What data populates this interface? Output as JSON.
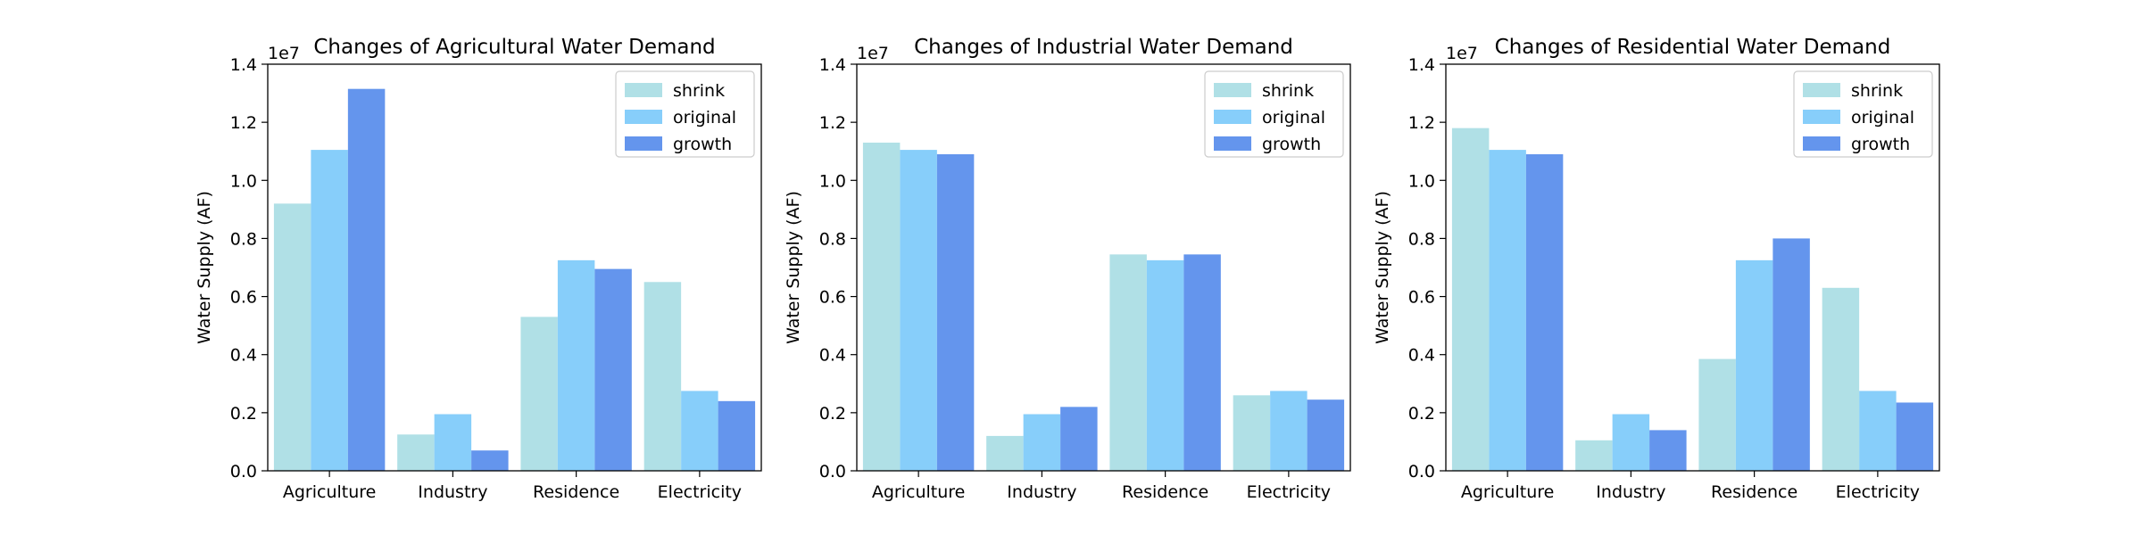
{
  "chart_data": [
    {
      "type": "bar",
      "title": "Changes of Agricultural Water Demand",
      "xlabel": "",
      "ylabel": "Water Supply (AF)",
      "ylim": [
        0,
        14000000
      ],
      "scale_label": "1e7",
      "y_ticks": [
        "0.0",
        "0.2",
        "0.4",
        "0.6",
        "0.8",
        "1.0",
        "1.2",
        "1.4"
      ],
      "categories": [
        "Agriculture",
        "Industry",
        "Residence",
        "Electricity"
      ],
      "legend_position": "top-right",
      "series": [
        {
          "name": "shrink",
          "color": "#b0e0e6",
          "values": [
            9200000,
            1250000,
            5300000,
            6500000
          ]
        },
        {
          "name": "original",
          "color": "#87cefa",
          "values": [
            11050000,
            1950000,
            7250000,
            2750000
          ]
        },
        {
          "name": "growth",
          "color": "#6495ed",
          "values": [
            13150000,
            700000,
            6950000,
            2400000
          ]
        }
      ]
    },
    {
      "type": "bar",
      "title": "Changes of Industrial Water Demand",
      "xlabel": "",
      "ylabel": "Water Supply (AF)",
      "ylim": [
        0,
        14000000
      ],
      "scale_label": "1e7",
      "y_ticks": [
        "0.0",
        "0.2",
        "0.4",
        "0.6",
        "0.8",
        "1.0",
        "1.2",
        "1.4"
      ],
      "categories": [
        "Agriculture",
        "Industry",
        "Residence",
        "Electricity"
      ],
      "legend_position": "top-right",
      "series": [
        {
          "name": "shrink",
          "color": "#b0e0e6",
          "values": [
            11300000,
            1200000,
            7450000,
            2600000
          ]
        },
        {
          "name": "original",
          "color": "#87cefa",
          "values": [
            11050000,
            1950000,
            7250000,
            2750000
          ]
        },
        {
          "name": "growth",
          "color": "#6495ed",
          "values": [
            10900000,
            2200000,
            7450000,
            2450000
          ]
        }
      ]
    },
    {
      "type": "bar",
      "title": "Changes of Residential Water Demand",
      "xlabel": "",
      "ylabel": "Water Supply (AF)",
      "ylim": [
        0,
        14000000
      ],
      "scale_label": "1e7",
      "y_ticks": [
        "0.0",
        "0.2",
        "0.4",
        "0.6",
        "0.8",
        "1.0",
        "1.2",
        "1.4"
      ],
      "categories": [
        "Agriculture",
        "Industry",
        "Residence",
        "Electricity"
      ],
      "legend_position": "top-right",
      "series": [
        {
          "name": "shrink",
          "color": "#b0e0e6",
          "values": [
            11800000,
            1050000,
            3850000,
            6300000
          ]
        },
        {
          "name": "original",
          "color": "#87cefa",
          "values": [
            11050000,
            1950000,
            7250000,
            2750000
          ]
        },
        {
          "name": "growth",
          "color": "#6495ed",
          "values": [
            10900000,
            1400000,
            8000000,
            2350000
          ]
        }
      ]
    }
  ]
}
